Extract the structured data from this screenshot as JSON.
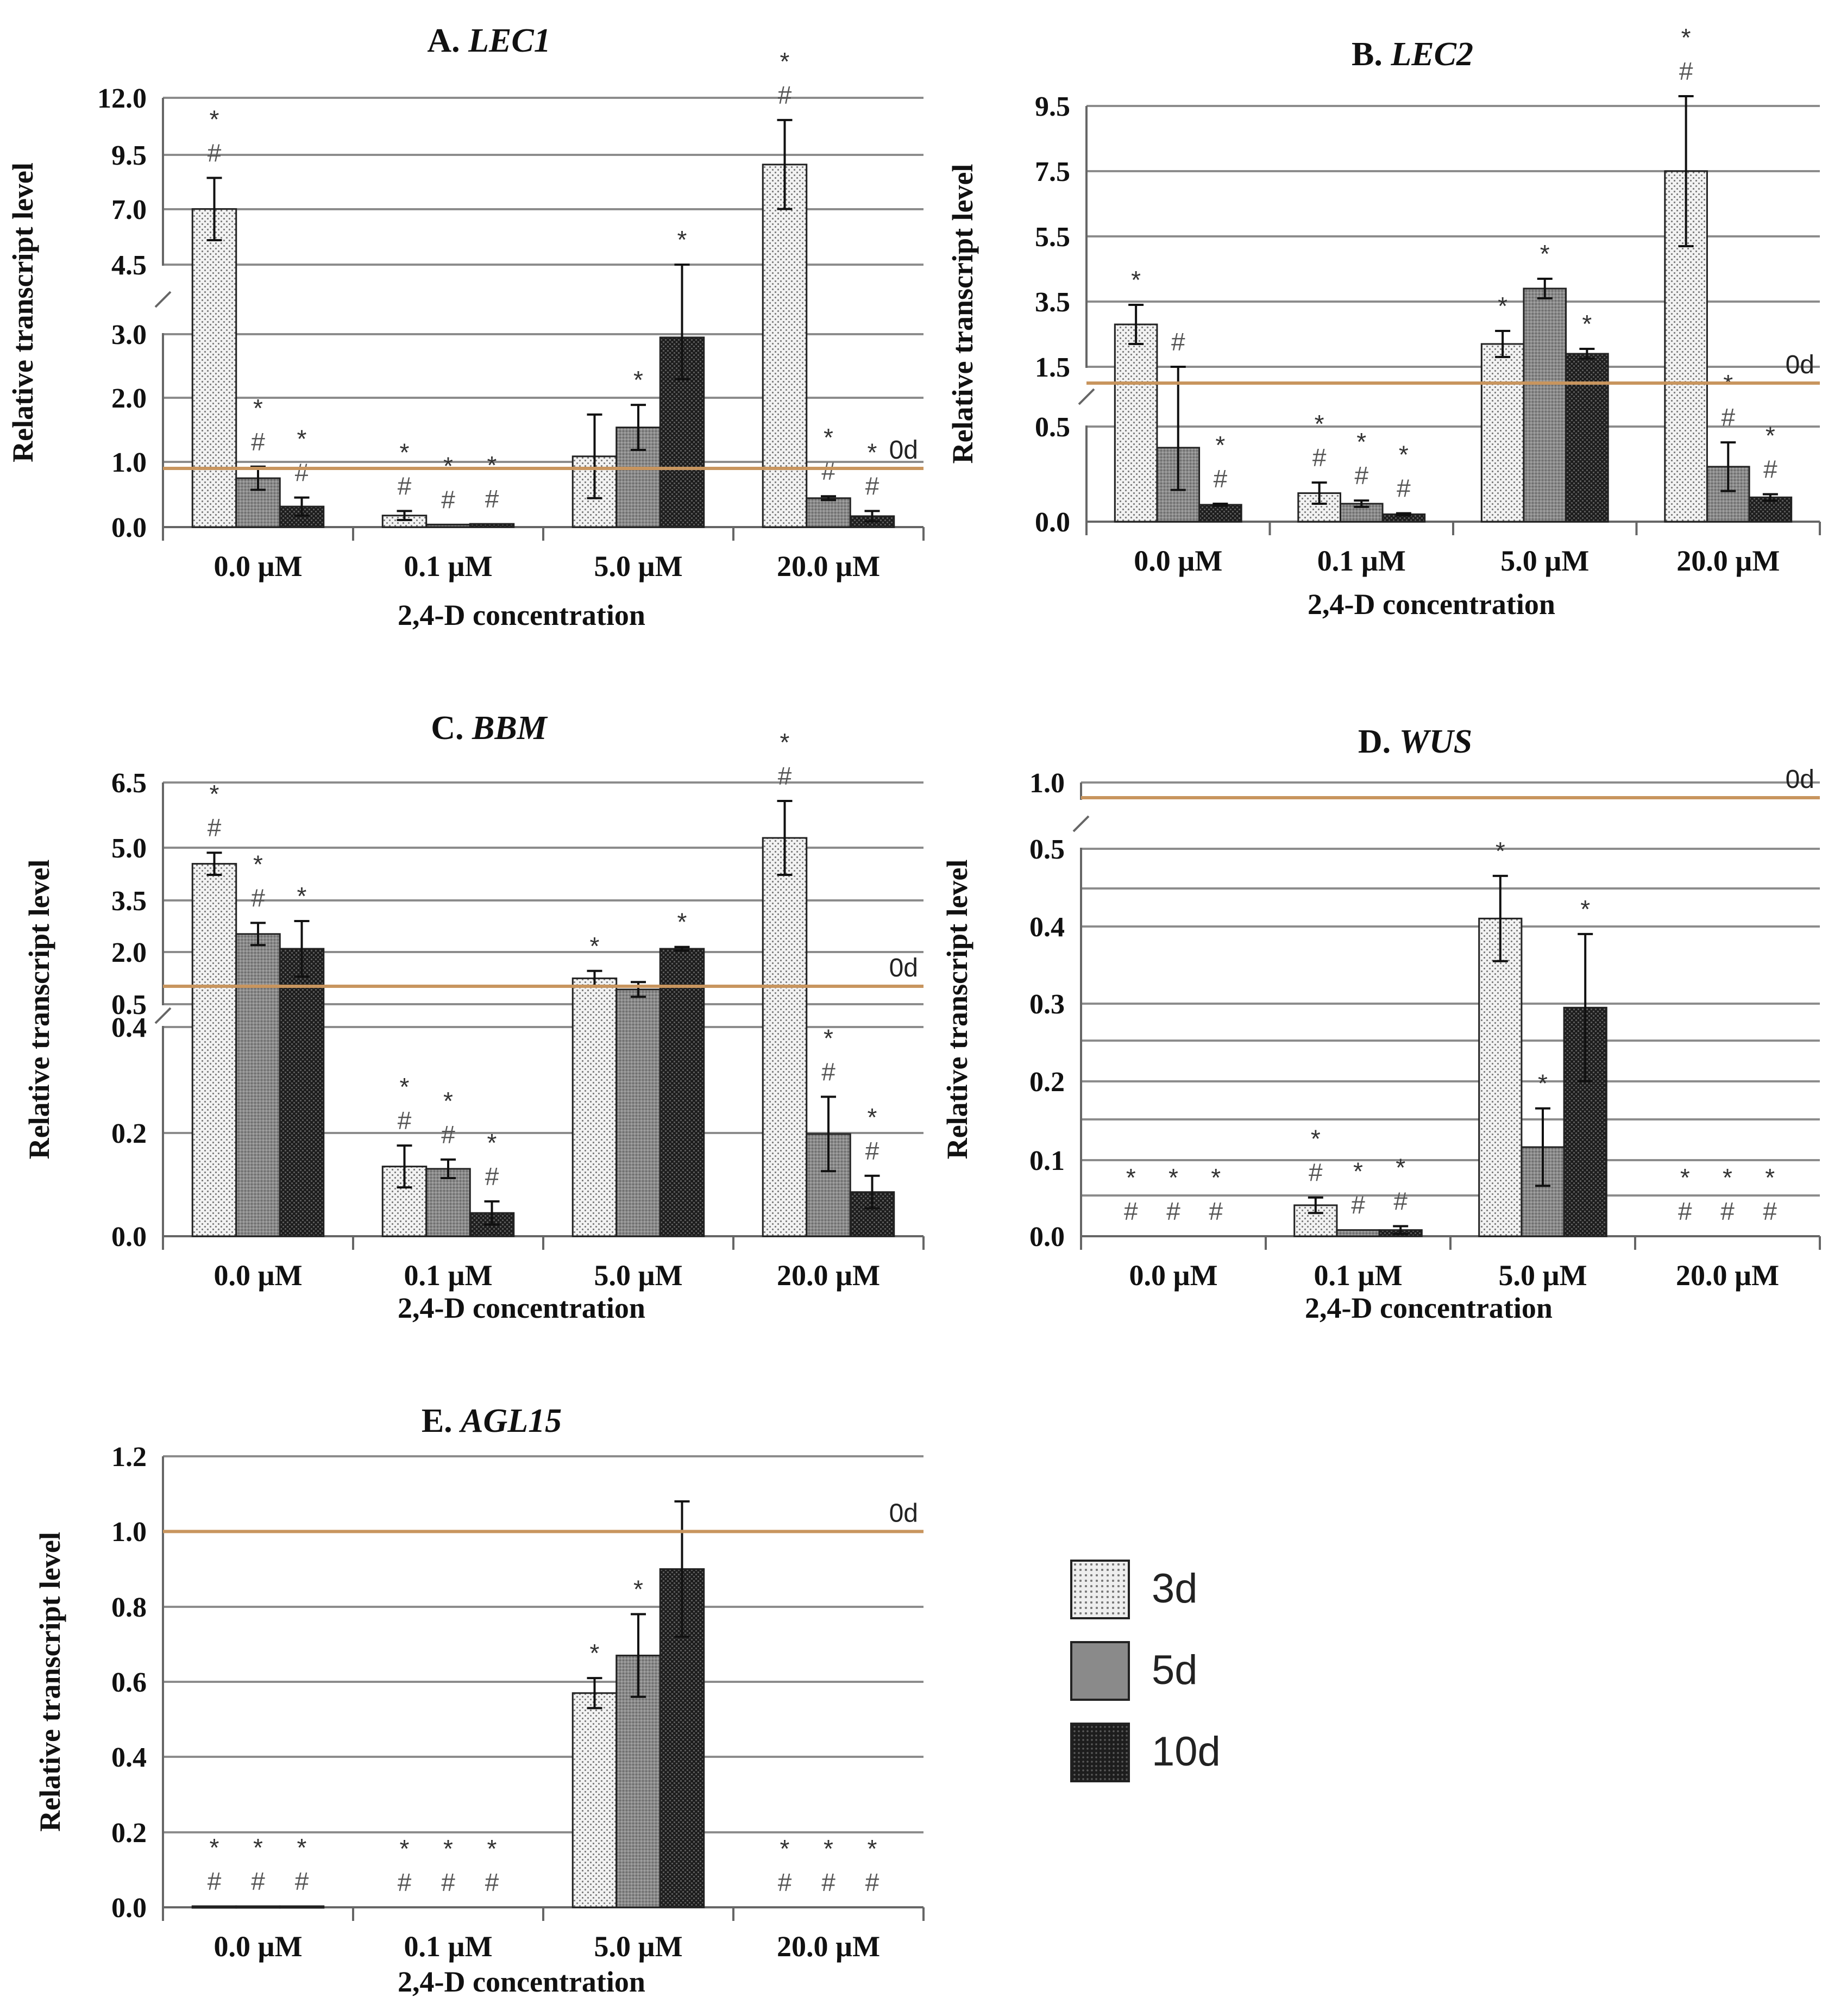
{
  "figure": {
    "legend": [
      {
        "label": "3d",
        "pattern": "dots"
      },
      {
        "label": "5d",
        "pattern": "grey"
      },
      {
        "label": "10d",
        "pattern": "dark"
      }
    ]
  },
  "chart_data": [
    {
      "type": "bar",
      "panel_letter": "A. ",
      "gene": "LEC1",
      "ylabel": "Relative transcript level",
      "xlabel": "2,4-D concentration",
      "categories": [
        "0.0 µM",
        "0.1 µM",
        "5.0 µM",
        "20.0 µM"
      ],
      "axis_break": true,
      "lower_ticks": [
        "0.0",
        "1.0",
        "2.0",
        "3.0"
      ],
      "upper_ticks": [
        "4.5",
        "7.0",
        "9.5",
        "12.0"
      ],
      "lower_range": [
        0,
        3.0
      ],
      "upper_range": [
        4.5,
        12.0
      ],
      "reference": {
        "label": "0d",
        "value": 1.0
      },
      "series": [
        {
          "name": "3d",
          "values": [
            7.0,
            0.18,
            1.1,
            9.0
          ],
          "errors": [
            1.4,
            0.07,
            0.65,
            2.0
          ],
          "marks": [
            [
              "*",
              "#"
            ],
            [
              "*",
              "#"
            ],
            [],
            [
              "*",
              "#"
            ]
          ]
        },
        {
          "name": "5d",
          "values": [
            0.76,
            0.04,
            1.55,
            0.45
          ],
          "errors": [
            0.18,
            0.0,
            0.35,
            0.03
          ],
          "marks": [
            [
              "*",
              "#"
            ],
            [
              "*",
              "#"
            ],
            [
              "*"
            ],
            [
              "*",
              "#"
            ]
          ]
        },
        {
          "name": "10d",
          "values": [
            0.32,
            0.05,
            2.95,
            0.17
          ],
          "errors": [
            0.14,
            0.0,
            0.65,
            0.08
          ],
          "marks": [
            [
              "*",
              "#"
            ],
            [
              "*",
              "#"
            ],
            [
              "*"
            ],
            [
              "*",
              "#"
            ]
          ]
        }
      ]
    },
    {
      "type": "bar",
      "panel_letter": "B. ",
      "gene": "LEC2",
      "ylabel": "Relative transcript level",
      "xlabel": "2,4-D concentration",
      "categories": [
        "0.0 µM",
        "0.1 µM",
        "5.0 µM",
        "20.0 µM"
      ],
      "axis_break": true,
      "lower_ticks": [
        "0.0",
        "0.5"
      ],
      "upper_ticks": [
        "1.5",
        "3.5",
        "5.5",
        "7.5",
        "9.5"
      ],
      "lower_range": [
        0,
        0.9
      ],
      "upper_range": [
        1.5,
        9.5
      ],
      "reference": {
        "label": "0d",
        "value": 1.0
      },
      "series": [
        {
          "name": "3d",
          "values": [
            2.8,
            0.27,
            2.2,
            7.5
          ],
          "errors": [
            0.6,
            0.1,
            0.4,
            2.3
          ],
          "marks": [
            [
              "*"
            ],
            [
              "*",
              "#"
            ],
            [
              "*"
            ],
            [
              "*",
              "#"
            ]
          ]
        },
        {
          "name": "5d",
          "values": [
            0.7,
            0.17,
            3.9,
            0.52
          ],
          "errors": [
            0.4,
            0.03,
            0.3,
            0.23
          ],
          "marks": [
            [
              "#"
            ],
            [
              "*",
              "#"
            ],
            [
              "*"
            ],
            [
              "*",
              "#"
            ]
          ]
        },
        {
          "name": "10d",
          "values": [
            0.16,
            0.07,
            1.9,
            0.23
          ],
          "errors": [
            0.01,
            0.01,
            0.15,
            0.03
          ],
          "marks": [
            [
              "*",
              "#"
            ],
            [
              "*",
              "#"
            ],
            [
              "*"
            ],
            [
              "*",
              "#"
            ]
          ]
        }
      ]
    },
    {
      "type": "bar",
      "panel_letter": "C. ",
      "gene": "BBM",
      "ylabel": "Relative transcript level",
      "xlabel": "2,4-D concentration",
      "categories": [
        "0.0 µM",
        "0.1 µM",
        "5.0 µM",
        "20.0 µM"
      ],
      "axis_break": true,
      "lower_ticks": [
        "0.0",
        "0.2",
        "0.4"
      ],
      "upper_ticks": [
        "0.5",
        "2.0",
        "3.5",
        "5.0",
        "6.5"
      ],
      "lower_range": [
        0,
        0.45
      ],
      "upper_range": [
        0.5,
        6.5
      ],
      "reference": {
        "label": "0d",
        "value": 1.0
      },
      "series": [
        {
          "name": "3d",
          "values": [
            4.3,
            0.15,
            1.2,
            5.0
          ],
          "errors": [
            0.3,
            0.045,
            0.2,
            1.0
          ],
          "marks": [
            [
              "*",
              "#"
            ],
            [
              "*",
              "#"
            ],
            [
              "*"
            ],
            [
              "*",
              "#"
            ]
          ]
        },
        {
          "name": "5d",
          "values": [
            2.4,
            0.145,
            0.9,
            0.22
          ],
          "errors": [
            0.3,
            0.02,
            0.2,
            0.08
          ],
          "marks": [
            [
              "*",
              "#"
            ],
            [
              "*",
              "#"
            ],
            [],
            [
              "*",
              "#"
            ]
          ]
        },
        {
          "name": "10d",
          "values": [
            2.0,
            0.05,
            2.0,
            0.095
          ],
          "errors": [
            0.75,
            0.025,
            0.05,
            0.035
          ],
          "marks": [
            [
              "*"
            ],
            [
              "*",
              "#"
            ],
            [
              "*"
            ],
            [
              "*",
              "#"
            ]
          ]
        }
      ]
    },
    {
      "type": "bar",
      "panel_letter": "D. ",
      "gene": "WUS",
      "ylabel": "Relative transcript level",
      "xlabel": "2,4-D concentration",
      "categories": [
        "0.0 µM",
        "0.1 µM",
        "5.0 µM",
        "20.0 µM"
      ],
      "axis_break": true,
      "lower_ticks": [
        "0.0",
        "0.1",
        "0.2",
        "0.3",
        "0.4",
        "0.5"
      ],
      "upper_ticks": [
        "1.0"
      ],
      "lower_range": [
        0,
        0.5
      ],
      "upper_range": [
        0.9,
        1.0
      ],
      "reference": {
        "label": "0d",
        "value": 1.0
      },
      "series": [
        {
          "name": "3d",
          "values": [
            0,
            0.04,
            0.41,
            0
          ],
          "errors": [
            0,
            0.01,
            0.055,
            0
          ],
          "marks": [
            [
              "*",
              "#"
            ],
            [
              "*",
              "#"
            ],
            [
              "*"
            ],
            [
              "*",
              "#"
            ]
          ]
        },
        {
          "name": "5d",
          "values": [
            0,
            0.008,
            0.115,
            0
          ],
          "errors": [
            0,
            0.0,
            0.05,
            0
          ],
          "marks": [
            [
              "*",
              "#"
            ],
            [
              "*",
              "#"
            ],
            [
              "*"
            ],
            [
              "*",
              "#"
            ]
          ]
        },
        {
          "name": "10d",
          "values": [
            0,
            0.008,
            0.295,
            0
          ],
          "errors": [
            0,
            0.005,
            0.095,
            0
          ],
          "marks": [
            [
              "*",
              "#"
            ],
            [
              "*",
              "#"
            ],
            [
              "*"
            ],
            [
              "*",
              "#"
            ]
          ]
        }
      ]
    },
    {
      "type": "bar",
      "panel_letter": "E. ",
      "gene": "AGL15",
      "ylabel": "Relative transcript level",
      "xlabel": "2,4-D concentration",
      "categories": [
        "0.0 µM",
        "0.1 µM",
        "5.0 µM",
        "20.0 µM"
      ],
      "axis_break": false,
      "lower_ticks": [
        "0.0",
        "0.2",
        "0.4",
        "0.6",
        "0.8",
        "1.0",
        "1.2"
      ],
      "lower_range": [
        0,
        1.2
      ],
      "reference": {
        "label": "0d",
        "value": 1.0
      },
      "series": [
        {
          "name": "3d",
          "values": [
            0.003,
            0,
            0.57,
            0
          ],
          "errors": [
            0,
            0,
            0.04,
            0
          ],
          "marks": [
            [
              "*",
              "#"
            ],
            [
              "*",
              "#"
            ],
            [
              "*"
            ],
            [
              "*",
              "#"
            ]
          ]
        },
        {
          "name": "5d",
          "values": [
            0.003,
            0,
            0.67,
            0
          ],
          "errors": [
            0,
            0,
            0.11,
            0
          ],
          "marks": [
            [
              "*",
              "#"
            ],
            [
              "*",
              "#"
            ],
            [
              "*"
            ],
            [
              "*",
              "#"
            ]
          ]
        },
        {
          "name": "10d",
          "values": [
            0.003,
            0,
            0.9,
            0
          ],
          "errors": [
            0,
            0,
            0.18,
            0
          ],
          "marks": [
            [
              "*",
              "#"
            ],
            [
              "*",
              "#"
            ],
            [],
            [
              "*",
              "#"
            ]
          ]
        }
      ]
    }
  ]
}
